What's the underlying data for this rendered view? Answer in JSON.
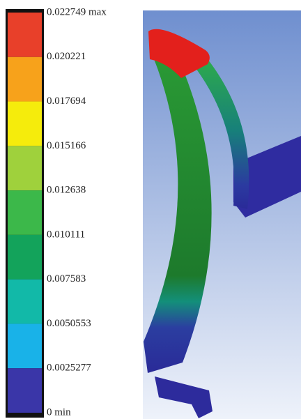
{
  "legend": {
    "labels": [
      "0.022749 max",
      "0.020221",
      "0.017694",
      "0.015166",
      "0.012638",
      "0.010111",
      "0.007583",
      "0.0050553",
      "0.0025277",
      "0 min"
    ],
    "colors": [
      "#e8402a",
      "#f7a21b",
      "#f5ec0c",
      "#9fd13c",
      "#3cb84a",
      "#13a35b",
      "#12b9a8",
      "#19b2e8",
      "#3a36a8"
    ]
  }
}
